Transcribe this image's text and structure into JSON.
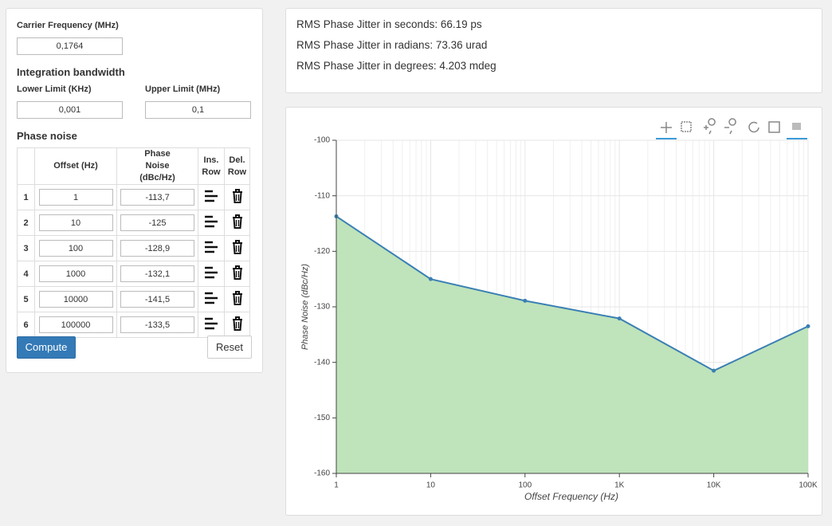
{
  "form": {
    "carrier_label": "Carrier Frequency (MHz)",
    "carrier_value": "0,1764",
    "bandwidth_title": "Integration bandwidth",
    "lower_label": "Lower Limit (KHz)",
    "lower_value": "0,001",
    "upper_label": "Upper Limit (MHz)",
    "upper_value": "0,1",
    "phase_noise_title": "Phase noise",
    "table": {
      "headers": [
        "Offset (Hz)",
        "Phase Noise (dBc/Hz)",
        "Ins. Row",
        "Del. Row"
      ],
      "rows": [
        [
          "1",
          "1",
          "-113,7"
        ],
        [
          "2",
          "10",
          "-125"
        ],
        [
          "3",
          "100",
          "-128,9"
        ],
        [
          "4",
          "1000",
          "-132,1"
        ],
        [
          "5",
          "10000",
          "-141,5"
        ],
        [
          "6",
          "100000",
          "-133,5"
        ]
      ]
    },
    "compute": "Compute",
    "reset": "Reset"
  },
  "results": [
    "RMS Phase Jitter in seconds: 66.19 ps",
    "RMS Phase Jitter in radians: 73.36 urad",
    "RMS Phase Jitter in degrees: 4.203 mdeg"
  ],
  "chart_data": {
    "type": "area",
    "x_label": "Offset Frequency (Hz)",
    "y_label": "Phase Noise (dBc/Hz)",
    "x": [
      1,
      10,
      100,
      1000,
      10000,
      100000
    ],
    "series": [
      {
        "color": "#3a7fb4",
        "fill": "#bfe3ba",
        "values": [
          -113.7,
          -125,
          -128.9,
          -132.1,
          -141.5,
          -133.5
        ]
      }
    ],
    "x_scale": "log",
    "xlim": [
      1,
      100000
    ],
    "xticks": [
      1,
      10,
      100,
      {
        "value": 1000,
        "label": "1K"
      },
      {
        "value": 10000,
        "label": "10K"
      },
      {
        "value": 100000,
        "label": "100K"
      }
    ],
    "ylim": [
      -160,
      -100
    ],
    "yticks": [
      -100,
      -110,
      -120,
      -130,
      -140,
      -150,
      -160
    ],
    "grid": true
  }
}
